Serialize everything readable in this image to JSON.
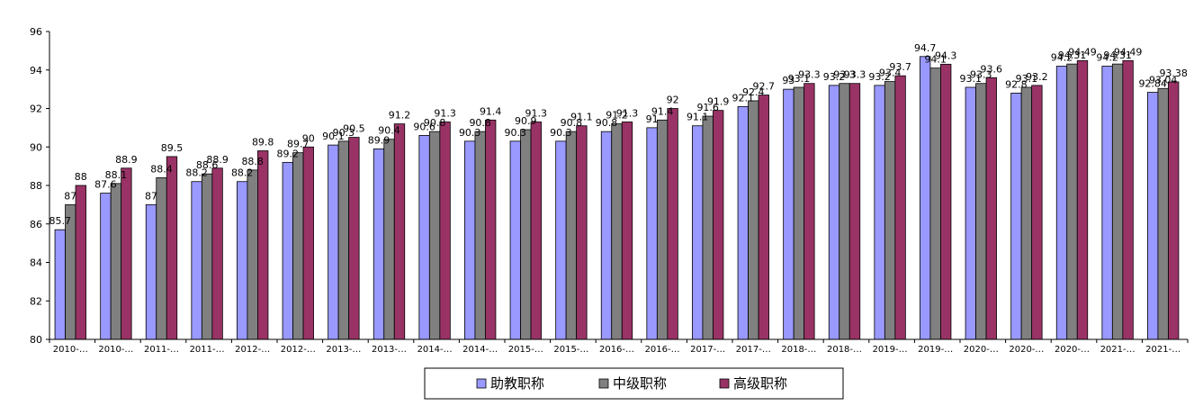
{
  "chart_data": {
    "type": "bar",
    "categories": [
      "2010-…",
      "2010-…",
      "2011-…",
      "2011-…",
      "2012-…",
      "2012-…",
      "2013-…",
      "2013-…",
      "2014-…",
      "2014-…",
      "2015-…",
      "2015-…",
      "2016-…",
      "2016-…",
      "2017-…",
      "2017-…",
      "2018-…",
      "2018-…",
      "2019-…",
      "2019-…",
      "2020-…",
      "2020-…",
      "2020-…",
      "2021-…",
      "2021-…"
    ],
    "series": [
      {
        "name": "助教职称",
        "color": "#9999ff",
        "values": [
          85.7,
          87.6,
          87,
          88.2,
          88.2,
          89.2,
          90.1,
          89.9,
          90.6,
          90.3,
          90.3,
          90.3,
          90.8,
          91,
          91.1,
          92.1,
          93,
          93.2,
          93.2,
          94.7,
          93.1,
          92.8,
          94.2,
          94.2,
          92.84
        ]
      },
      {
        "name": "中级职称",
        "color": "#808080",
        "values": [
          87,
          88.1,
          88.4,
          88.6,
          88.8,
          89.7,
          90.3,
          90.4,
          90.8,
          90.8,
          90.9,
          90.8,
          91.2,
          91.4,
          91.6,
          92.4,
          93.1,
          93.3,
          93.4,
          94.1,
          93.3,
          93.1,
          94.31,
          94.31,
          93.04
        ]
      },
      {
        "name": "高级职称",
        "color": "#993366",
        "values": [
          88,
          88.9,
          89.5,
          88.9,
          89.8,
          90,
          90.5,
          91.2,
          91.3,
          91.4,
          91.3,
          91.1,
          91.3,
          92,
          91.9,
          92.7,
          93.3,
          93.3,
          93.7,
          94.3,
          93.6,
          93.2,
          94.49,
          94.49,
          93.38
        ]
      }
    ],
    "y_ticks": [
      "80",
      "82",
      "84",
      "86",
      "88",
      "90",
      "92",
      "94",
      "96"
    ],
    "ylim": [
      80,
      96
    ],
    "legend": {
      "placement": "bottom-center",
      "entries": [
        "助教职称",
        "中级职称",
        "高级职称"
      ]
    },
    "grid": false
  }
}
